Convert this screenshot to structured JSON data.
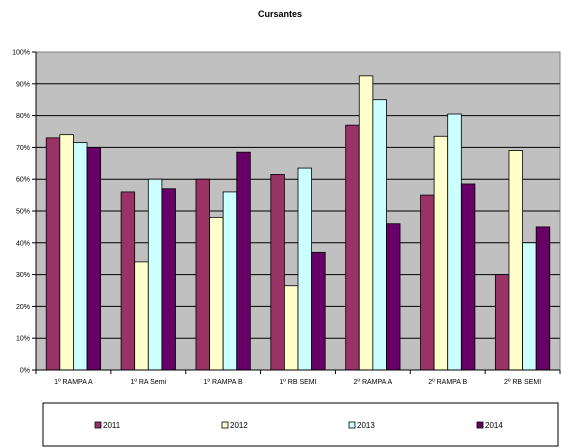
{
  "chart_data": {
    "type": "bar",
    "title": "Cursantes",
    "xlabel": "",
    "ylabel": "",
    "ylim": [
      0,
      100
    ],
    "yticks": [
      "0%",
      "10%",
      "20%",
      "30%",
      "40%",
      "50%",
      "60%",
      "70%",
      "80%",
      "90%",
      "100%"
    ],
    "grid": true,
    "legend_position": "bottom",
    "plot_background": "#c0c0c0",
    "categories": [
      "1º RAMPA A",
      "1º RA Semi",
      "1º RAMPA B",
      "1º RB SEMI",
      "2º RAMPA A",
      "2º RAMPA B",
      "2º RB SEMI"
    ],
    "series": [
      {
        "name": "2011",
        "color": "#993366",
        "values": [
          73,
          56,
          60,
          61.5,
          77,
          55,
          30
        ]
      },
      {
        "name": "2012",
        "color": "#ffffcc",
        "values": [
          74,
          34,
          48,
          26.5,
          92.5,
          73.5,
          69
        ]
      },
      {
        "name": "2013",
        "color": "#ccffff",
        "values": [
          71.5,
          60,
          56,
          63.5,
          85,
          80.5,
          40
        ]
      },
      {
        "name": "2014",
        "color": "#660066",
        "values": [
          70,
          57,
          68.5,
          37,
          46,
          58.5,
          45
        ]
      }
    ]
  }
}
